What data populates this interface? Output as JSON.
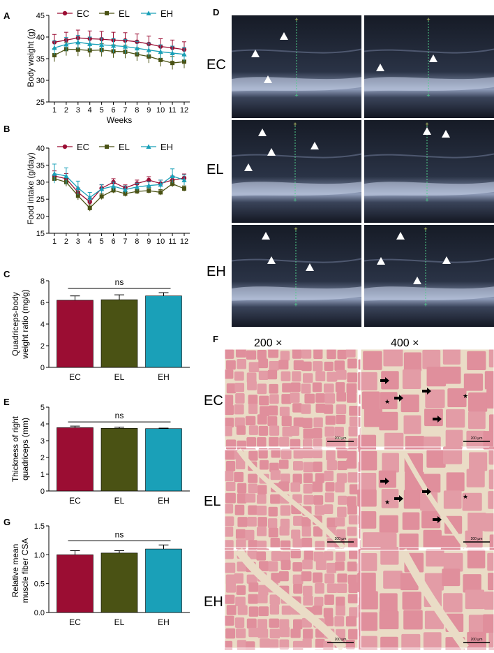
{
  "panels": {
    "A": "A",
    "B": "B",
    "C": "C",
    "D": "D",
    "E": "E",
    "F": "F",
    "G": "G"
  },
  "colors": {
    "EC": "#9b0d33",
    "EL": "#4a5214",
    "EH": "#1aa0b8",
    "axis": "#000000",
    "us_bg": "#1c2230",
    "he_pink": "#e39ca6"
  },
  "chart_data": [
    {
      "id": "A",
      "type": "line",
      "xlabel": "Weeks",
      "ylabel": "Body weight (g)",
      "x": [
        1,
        2,
        3,
        4,
        5,
        6,
        7,
        8,
        9,
        10,
        11,
        12
      ],
      "xticks": [
        "1",
        "2",
        "3",
        "4",
        "5",
        "6",
        "7",
        "8",
        "9",
        "10",
        "11",
        "12"
      ],
      "ylim": [
        25,
        45
      ],
      "yticks": [
        25,
        30,
        35,
        40,
        45
      ],
      "legend": [
        "EC",
        "EL",
        "EH"
      ],
      "legend_position": "top",
      "series": [
        {
          "name": "EC",
          "values": [
            38.8,
            39.3,
            39.8,
            39.6,
            39.5,
            39.3,
            39.2,
            38.9,
            38.4,
            37.8,
            37.5,
            37.1
          ],
          "err": [
            1.8,
            1.8,
            1.8,
            1.8,
            1.8,
            1.8,
            1.8,
            1.8,
            1.8,
            1.8,
            1.8,
            1.8
          ]
        },
        {
          "name": "EL",
          "values": [
            35.8,
            37.2,
            37.1,
            36.9,
            37.0,
            36.7,
            36.6,
            36.0,
            35.5,
            34.7,
            34.0,
            34.3
          ],
          "err": [
            1.5,
            1.5,
            1.5,
            1.5,
            1.5,
            1.5,
            1.5,
            1.5,
            1.5,
            1.5,
            1.5,
            1.5
          ]
        },
        {
          "name": "EH",
          "values": [
            37.5,
            38.3,
            38.8,
            38.4,
            38.2,
            38.0,
            37.8,
            37.4,
            37.0,
            36.6,
            36.3,
            36.0
          ],
          "err": [
            1.6,
            1.6,
            1.6,
            1.6,
            1.6,
            1.6,
            1.6,
            1.6,
            1.6,
            1.6,
            1.6,
            1.6
          ]
        }
      ]
    },
    {
      "id": "B",
      "type": "line",
      "xlabel": "Weeks",
      "ylabel": "Food intake (g/day)",
      "x": [
        1,
        2,
        3,
        4,
        5,
        6,
        7,
        8,
        9,
        10,
        11,
        12
      ],
      "xticks": [
        "1",
        "2",
        "3",
        "4",
        "5",
        "6",
        "7",
        "8",
        "9",
        "10",
        "11",
        "12"
      ],
      "ylim": [
        15,
        40
      ],
      "yticks": [
        15,
        20,
        25,
        30,
        35,
        40
      ],
      "legend": [
        "EC",
        "EL",
        "EH"
      ],
      "legend_position": "top",
      "series": [
        {
          "name": "EC",
          "values": [
            31.8,
            31.0,
            27.0,
            24.2,
            28.2,
            30.0,
            28.3,
            29.6,
            30.6,
            29.6,
            30.6,
            31.2
          ],
          "err": [
            1.5,
            1.5,
            1.3,
            1.2,
            1.0,
            1.0,
            0.9,
            1.0,
            1.0,
            1.0,
            1.2,
            1.2
          ]
        },
        {
          "name": "EL",
          "values": [
            31.0,
            30.0,
            26.0,
            22.4,
            25.8,
            27.6,
            26.6,
            27.3,
            27.5,
            27.0,
            29.5,
            28.1
          ],
          "err": [
            1.2,
            1.2,
            1.2,
            0.9,
            0.9,
            0.8,
            0.8,
            0.8,
            0.8,
            0.8,
            0.9,
            0.8
          ]
        },
        {
          "name": "EH",
          "values": [
            32.5,
            31.8,
            28.3,
            25.5,
            28.0,
            28.8,
            27.8,
            28.6,
            29.0,
            29.3,
            31.8,
            30.6
          ],
          "err": [
            2.8,
            2.4,
            2.0,
            1.5,
            1.3,
            1.2,
            1.1,
            1.1,
            1.1,
            1.3,
            2.1,
            1.5
          ]
        }
      ]
    },
    {
      "id": "C",
      "type": "bar",
      "ylabel": "Quadriceps-body weight ratio (mg/g)",
      "ylabel_lines": [
        "Quadriceps-body",
        "weight ratio (mg/g)"
      ],
      "categories": [
        "EC",
        "EL",
        "EH"
      ],
      "values": [
        6.2,
        6.25,
        6.6
      ],
      "err": [
        0.4,
        0.45,
        0.3
      ],
      "ylim": [
        0,
        8
      ],
      "yticks": [
        0,
        2,
        4,
        6,
        8
      ],
      "sig": "ns"
    },
    {
      "id": "E",
      "type": "bar",
      "ylabel": "Thickness of right quadriceps (mm)",
      "ylabel_lines": [
        "Thickness of right",
        "quadriceps (mm)"
      ],
      "categories": [
        "EC",
        "EL",
        "EH"
      ],
      "values": [
        3.78,
        3.74,
        3.72
      ],
      "err": [
        0.09,
        0.07,
        0.03
      ],
      "ylim": [
        0,
        5
      ],
      "yticks": [
        0,
        1,
        2,
        3,
        4,
        5
      ],
      "sig": "ns"
    },
    {
      "id": "G",
      "type": "bar",
      "ylabel": "Relative mean muscle fiber CSA",
      "ylabel_lines": [
        "Relative mean",
        "muscle fiber CSA"
      ],
      "categories": [
        "EC",
        "EL",
        "EH"
      ],
      "values": [
        1.0,
        1.03,
        1.1
      ],
      "err": [
        0.07,
        0.04,
        0.07
      ],
      "ylim": [
        0,
        1.5
      ],
      "yticks": [
        "0.0",
        "0.5",
        "1.0",
        "1.5"
      ],
      "sig": "ns"
    }
  ],
  "ultrasound": {
    "rows": [
      "EC",
      "EL",
      "EH"
    ]
  },
  "histology": {
    "rows": [
      "EC",
      "EL",
      "EH"
    ],
    "columns": [
      "200 ×",
      "400 ×"
    ],
    "scale_label": "200 μm"
  }
}
